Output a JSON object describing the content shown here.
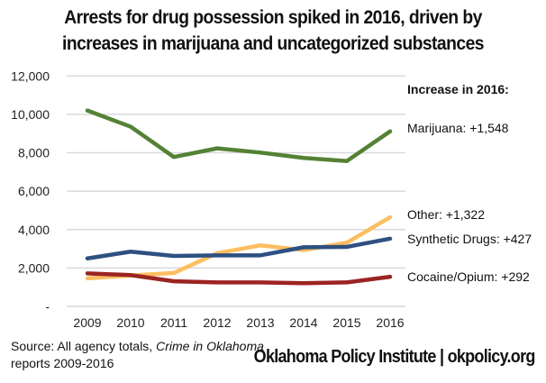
{
  "chart_data": {
    "type": "line",
    "title": "Arrests for drug possession spiked in 2016, driven by increases in marijuana and uncategorized substances",
    "title_lines": [
      "Arrests for drug possession spiked in 2016, driven by",
      "increases in marijuana and uncategorized substances"
    ],
    "xlabel": "",
    "ylabel": "",
    "categories": [
      "2009",
      "2010",
      "2011",
      "2012",
      "2013",
      "2014",
      "2015",
      "2016"
    ],
    "ylim": [
      0,
      12000
    ],
    "yticks": [
      0,
      2000,
      4000,
      6000,
      8000,
      10000,
      12000
    ],
    "ytick_labels": [
      "-",
      "2,000",
      "4,000",
      "6,000",
      "8,000",
      "10,000",
      "12,000"
    ],
    "grid": true,
    "legend": "direct labels at right",
    "series": [
      {
        "name": "Marijuana",
        "color": "#548235",
        "values": [
          10200,
          9360,
          7780,
          8230,
          8010,
          7730,
          7570,
          9118
        ]
      },
      {
        "name": "Other",
        "color": "#fdbe61",
        "values": [
          1460,
          1610,
          1740,
          2770,
          3180,
          2930,
          3320,
          4642
        ]
      },
      {
        "name": "Synthetic Drugs",
        "color": "#2e5082",
        "values": [
          2500,
          2850,
          2630,
          2660,
          2660,
          3080,
          3100,
          3527
        ]
      },
      {
        "name": "Cocaine/Opium",
        "color": "#9b2423",
        "values": [
          1720,
          1630,
          1310,
          1250,
          1250,
          1210,
          1250,
          1542
        ]
      }
    ],
    "annotations": {
      "header": "Increase in 2016:",
      "labels": [
        "Marijuana: +1,548",
        "Other: +1,322",
        "Synthetic Drugs: +427",
        "Cocaine/Opium: +292"
      ]
    }
  },
  "source": {
    "prefix": "Source: All agency totals, ",
    "italic": "Crime in Oklahoma",
    "line2": "reports 2009-2016"
  },
  "org": "Oklahoma Policy Institute | okpolicy.org"
}
